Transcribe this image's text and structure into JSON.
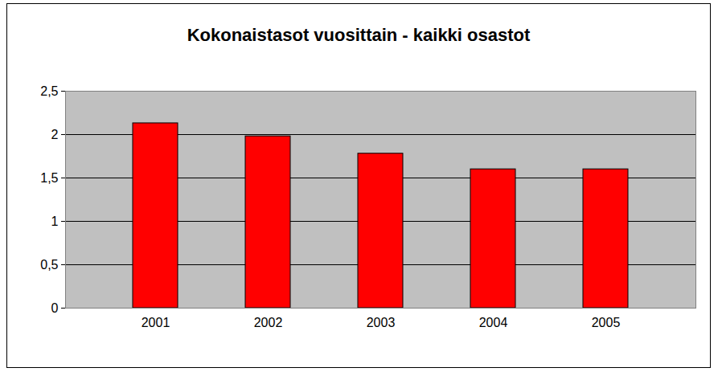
{
  "chart_data": {
    "type": "bar",
    "title": "Kokonaistasot vuosittain - kaikki osastot",
    "categories": [
      "2001",
      "2002",
      "2003",
      "2004",
      "2005"
    ],
    "values": [
      2.13,
      1.98,
      1.78,
      1.6,
      1.6
    ],
    "color": "#ff0000",
    "ylim": [
      0,
      2.5
    ],
    "yticks": [
      0,
      {
        "value": 0.5,
        "label": "0,5"
      },
      1,
      {
        "value": 1.5,
        "label": "1,5"
      },
      2,
      {
        "value": 2.5,
        "label": "2,5"
      }
    ],
    "grid": true
  }
}
